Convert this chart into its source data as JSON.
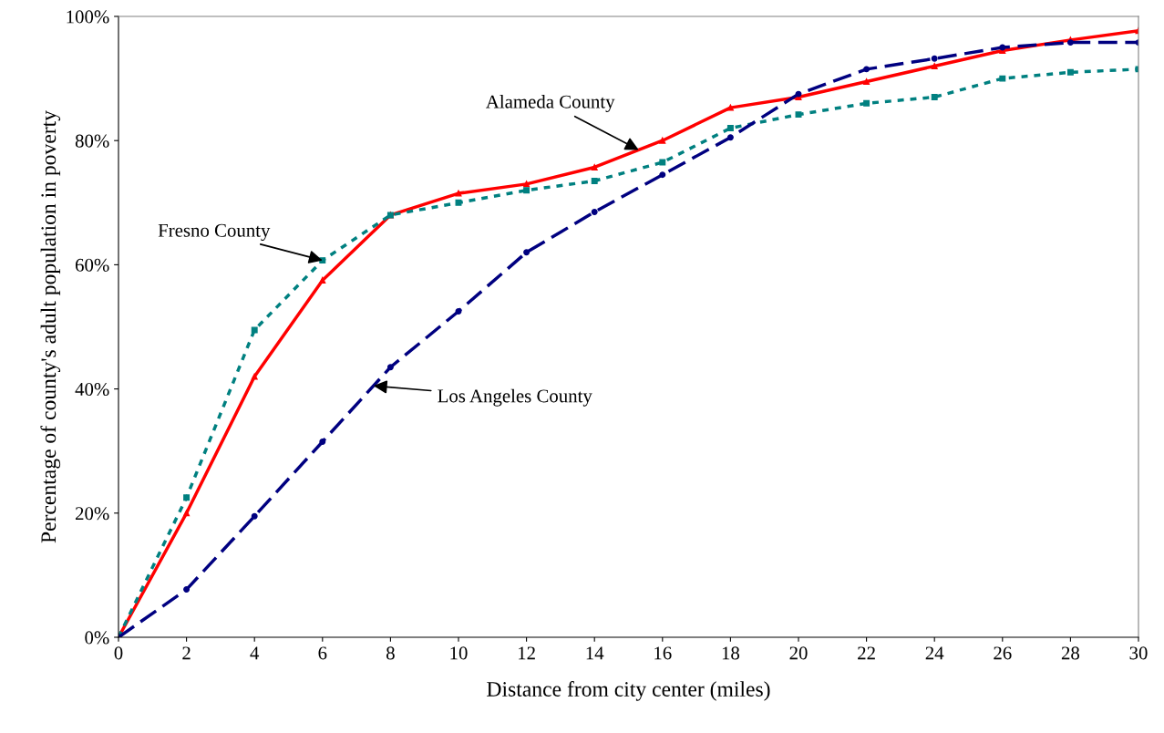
{
  "chart_data": {
    "type": "line",
    "xlabel": "Distance from city center (miles)",
    "ylabel": "Percentage of county's adult population in poverty",
    "x": [
      0,
      2,
      4,
      6,
      8,
      10,
      12,
      14,
      16,
      18,
      20,
      22,
      24,
      26,
      28,
      30
    ],
    "series": [
      {
        "name": "Alameda County",
        "color": "#ff0000",
        "line_style": "solid",
        "marker": "triangle",
        "values": [
          0,
          20,
          42,
          57.5,
          68,
          71.5,
          73,
          75.7,
          80,
          85.3,
          87,
          89.5,
          92,
          94.5,
          96.2,
          97.7
        ]
      },
      {
        "name": "Fresno County",
        "color": "#008080",
        "line_style": "dotted",
        "marker": "square",
        "values": [
          0,
          22.5,
          49.5,
          60.7,
          68,
          70,
          72,
          73.5,
          76.5,
          82,
          84.2,
          86,
          87,
          90,
          91,
          91.5
        ]
      },
      {
        "name": "Los Angeles County",
        "color": "#000080",
        "line_style": "dashed",
        "marker": "circle",
        "values": [
          0,
          7.7,
          19.5,
          31.5,
          43.5,
          52.5,
          62,
          68.5,
          74.5,
          80.5,
          87.5,
          91.5,
          93.2,
          95,
          95.8,
          95.8
        ]
      }
    ],
    "xlim": [
      0,
      30
    ],
    "xticks": [
      0,
      2,
      4,
      6,
      8,
      10,
      12,
      14,
      16,
      18,
      20,
      22,
      24,
      26,
      28,
      30
    ],
    "ylim": [
      0,
      100
    ],
    "yticks": [
      {
        "value": 0,
        "label": "0%"
      },
      {
        "value": 20,
        "label": "20%"
      },
      {
        "value": 40,
        "label": "40%"
      },
      {
        "value": 60,
        "label": "60%"
      },
      {
        "value": 80,
        "label": "80%"
      },
      {
        "value": 100,
        "label": "100%"
      }
    ],
    "grid": false,
    "legend": false
  }
}
